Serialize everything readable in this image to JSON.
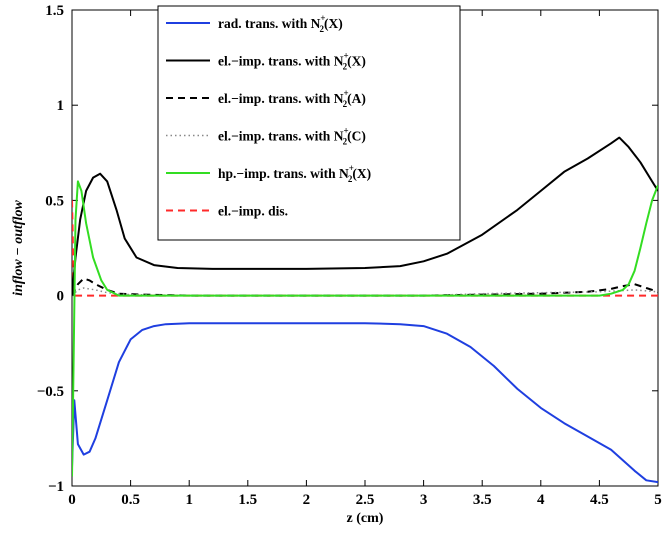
{
  "chart_data": {
    "type": "line",
    "xlabel": "z (cm)",
    "ylabel": "inflow − outflow",
    "xlim": [
      0,
      5
    ],
    "ylim": [
      -1,
      1.5
    ],
    "xticks": [
      "0",
      "0.5",
      "1",
      "1.5",
      "2",
      "2.5",
      "3",
      "3.5",
      "4",
      "4.5",
      "5"
    ],
    "yticks": [
      "−1",
      "−0.5",
      "0",
      "0.5",
      "1",
      "1.5"
    ],
    "grid": false,
    "legend_position": "top-center",
    "series": [
      {
        "name": "rad. trans. with N₂⁺(X)",
        "legend_prefix": "rad. trans. with N",
        "legend_state": "(X)",
        "color": "#1f3fe0",
        "dash": "solid",
        "x": [
          0.0,
          0.02,
          0.05,
          0.1,
          0.15,
          0.2,
          0.3,
          0.4,
          0.5,
          0.6,
          0.7,
          0.8,
          1.0,
          1.5,
          2.0,
          2.5,
          2.8,
          3.0,
          3.2,
          3.4,
          3.6,
          3.8,
          4.0,
          4.2,
          4.4,
          4.6,
          4.8,
          4.9,
          5.0
        ],
        "y": [
          -0.9,
          -0.55,
          -0.78,
          -0.835,
          -0.82,
          -0.75,
          -0.55,
          -0.35,
          -0.23,
          -0.18,
          -0.16,
          -0.15,
          -0.145,
          -0.145,
          -0.145,
          -0.145,
          -0.15,
          -0.16,
          -0.2,
          -0.27,
          -0.37,
          -0.49,
          -0.59,
          -0.67,
          -0.74,
          -0.81,
          -0.92,
          -0.97,
          -0.98
        ]
      },
      {
        "name": "el.−imp. trans. with N₂⁺(X)",
        "legend_prefix": "el.−imp. trans. with N",
        "legend_state": "(X)",
        "color": "#000000",
        "dash": "solid",
        "x": [
          0.0,
          0.03,
          0.07,
          0.12,
          0.18,
          0.24,
          0.3,
          0.38,
          0.45,
          0.55,
          0.7,
          0.9,
          1.2,
          1.6,
          2.0,
          2.5,
          2.8,
          3.0,
          3.2,
          3.5,
          3.8,
          4.0,
          4.2,
          4.4,
          4.6,
          4.67,
          4.75,
          4.85,
          4.95,
          5.0
        ],
        "y": [
          0.0,
          0.2,
          0.4,
          0.55,
          0.62,
          0.64,
          0.6,
          0.45,
          0.3,
          0.2,
          0.16,
          0.145,
          0.14,
          0.14,
          0.14,
          0.145,
          0.155,
          0.18,
          0.22,
          0.32,
          0.45,
          0.55,
          0.65,
          0.72,
          0.8,
          0.83,
          0.78,
          0.7,
          0.6,
          0.55
        ]
      },
      {
        "name": "el.−imp. trans. with N₂⁺(A)",
        "legend_prefix": "el.−imp. trans. with N",
        "legend_state": "(A)",
        "color": "#000000",
        "dash": "dashed",
        "x": [
          0.0,
          0.05,
          0.1,
          0.15,
          0.2,
          0.3,
          0.4,
          0.6,
          1.0,
          2.0,
          3.0,
          3.5,
          4.0,
          4.4,
          4.6,
          4.7,
          4.8,
          4.9,
          5.0
        ],
        "y": [
          0.0,
          0.06,
          0.09,
          0.08,
          0.06,
          0.03,
          0.01,
          0.005,
          0.0,
          0.0,
          0.0,
          0.005,
          0.01,
          0.02,
          0.035,
          0.05,
          0.06,
          0.04,
          0.02
        ]
      },
      {
        "name": "el.−imp. trans. with N₂⁺(C)",
        "legend_prefix": "el.−imp. trans. with N",
        "legend_state": "(C)",
        "color": "#888888",
        "dash": "dotted",
        "x": [
          0.0,
          0.05,
          0.1,
          0.2,
          0.3,
          0.5,
          1.0,
          2.0,
          3.0,
          3.5,
          4.0,
          4.5,
          4.8,
          5.0
        ],
        "y": [
          0.0,
          0.03,
          0.04,
          0.03,
          0.015,
          0.005,
          0.0,
          0.0,
          0.0,
          0.01,
          0.015,
          0.02,
          0.03,
          0.02
        ]
      },
      {
        "name": "hp.−imp. trans. with N₂⁺(X)",
        "legend_prefix": "hp.−imp. trans. with N",
        "legend_state": "(X)",
        "color": "#33dd22",
        "dash": "solid",
        "x": [
          0.0,
          0.01,
          0.03,
          0.05,
          0.08,
          0.12,
          0.18,
          0.25,
          0.3,
          0.4,
          0.6,
          1.0,
          2.0,
          3.0,
          4.0,
          4.5,
          4.6,
          4.7,
          4.75,
          4.8,
          4.85,
          4.9,
          4.95,
          5.0
        ],
        "y": [
          -0.95,
          -0.5,
          0.4,
          0.6,
          0.55,
          0.38,
          0.2,
          0.08,
          0.03,
          0.0,
          0.0,
          0.0,
          0.0,
          0.0,
          0.0,
          0.0,
          0.01,
          0.03,
          0.06,
          0.13,
          0.25,
          0.38,
          0.5,
          0.58
        ]
      },
      {
        "name": "el.−imp. dis.",
        "legend_prefix": "el.−imp. dis.",
        "legend_state": "",
        "color": "#ff2a2a",
        "dash": "dashed",
        "x": [
          0.0,
          0.005,
          0.01,
          0.015,
          0.02,
          1.0,
          2.0,
          3.0,
          4.0,
          5.0
        ],
        "y": [
          0.5,
          0.35,
          0.15,
          0.02,
          0.0,
          0.0,
          0.0,
          0.0,
          0.0,
          0.0
        ]
      }
    ]
  },
  "legend": {
    "subscript": "2",
    "superscript": "+"
  }
}
